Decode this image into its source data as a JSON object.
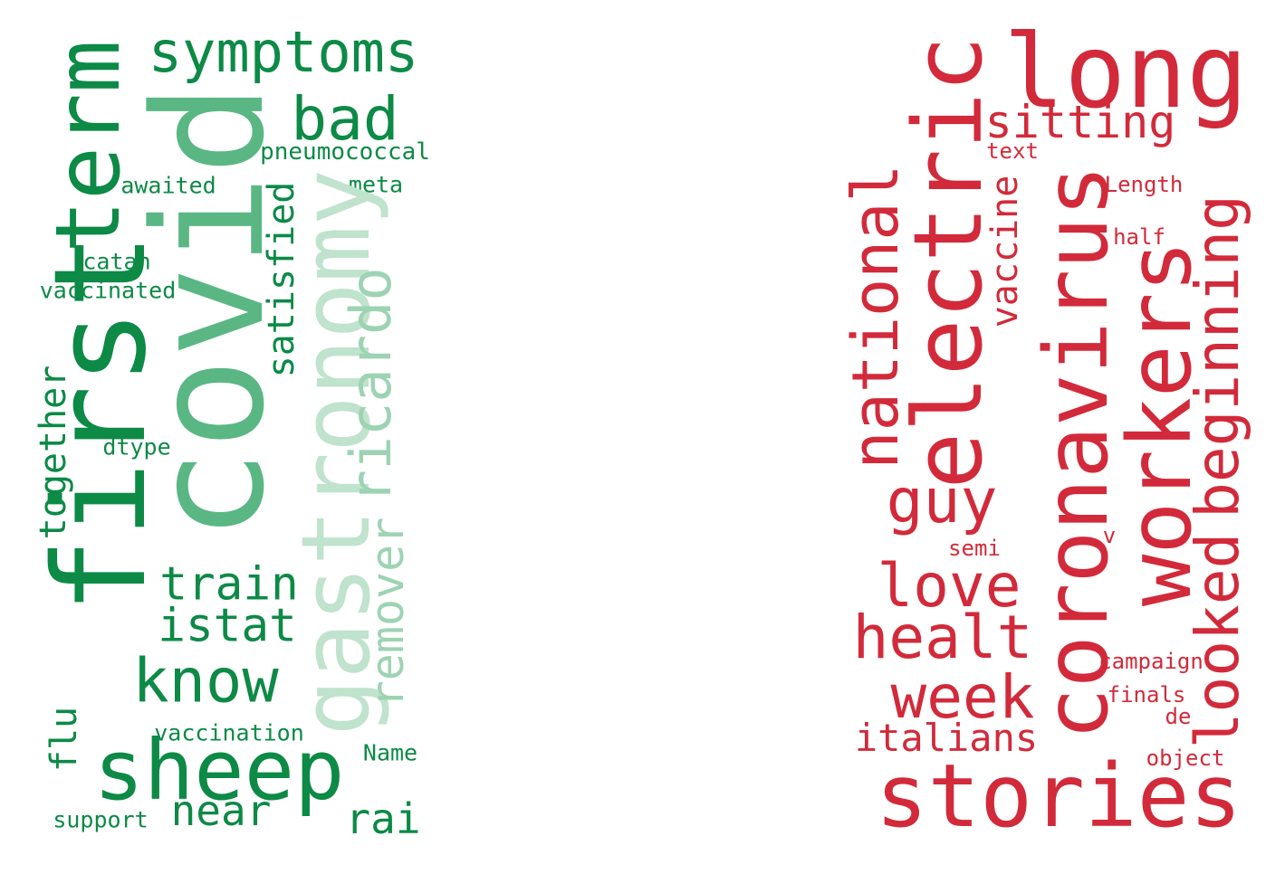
{
  "colors": {
    "green_dark": "#0c8a46",
    "green_mid": "#5ab784",
    "green_light": "#9dd3b3",
    "green_pale": "#bfe3cc",
    "red": "#d22a3a"
  },
  "left_cloud": {
    "words": [
      "symptoms",
      "bad",
      "pneumococcal",
      "awaited",
      "meta",
      "catan",
      "vaccinated",
      "term",
      "covid",
      "first",
      "gastronomy",
      "ricardo",
      "remover",
      "satisfied",
      "together",
      "dtype",
      "train",
      "istat",
      "know",
      "flu",
      "sheep",
      "vaccination",
      "Name",
      "near",
      "rai",
      "support"
    ]
  },
  "right_cloud": {
    "words": [
      "long",
      "electric",
      "sitting",
      "text",
      "Length",
      "half",
      "national",
      "vaccine",
      "coronavirus",
      "workers",
      "beginning",
      "guy",
      "semi",
      "v",
      "love",
      "looked",
      "healt",
      "campaign",
      "week",
      "finals",
      "de",
      "italians",
      "object",
      "stories"
    ]
  }
}
